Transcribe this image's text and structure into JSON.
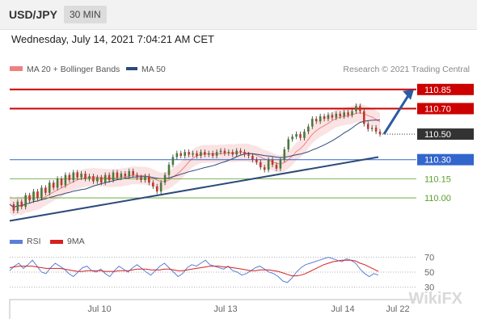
{
  "header": {
    "symbol": "USD/JPY",
    "timeframe": "30 MIN"
  },
  "datetime": "Wednesday, July 14, 2021 7:04:21 AM CET",
  "watermark": "Research © 2021 Trading Central",
  "brand_mark": "WikiFX",
  "colors": {
    "resistance": "#cc0000",
    "support": "#3366cc",
    "target_ok": "#5aa02c",
    "current": "#333333",
    "ma20": "#f08080",
    "ma50": "#2c4a7a",
    "rsi": "#5b7fd6",
    "rsi_ma": "#d62020"
  },
  "chart_data": [
    {
      "type": "line",
      "title": "USD/JPY 30 MIN",
      "legend": [
        {
          "name": "MA 20 + Bollinger Bands",
          "color": "#f08080"
        },
        {
          "name": "MA 50",
          "color": "#2c4a7a"
        }
      ],
      "x_ticks": [
        "Jul 10",
        "Jul 13",
        "Jul 14",
        "Jul 22"
      ],
      "ylim": [
        109.76,
        110.95
      ],
      "levels": [
        {
          "label": "110.85",
          "value": 110.85,
          "kind": "resistance"
        },
        {
          "label": "110.70",
          "value": 110.7,
          "kind": "resistance"
        },
        {
          "label": "110.50",
          "value": 110.5,
          "kind": "current"
        },
        {
          "label": "110.30",
          "value": 110.3,
          "kind": "support"
        },
        {
          "label": "110.15",
          "value": 110.15,
          "kind": "target"
        },
        {
          "label": "110.00",
          "value": 110.0,
          "kind": "target"
        }
      ],
      "price_series": [
        109.95,
        109.9,
        109.97,
        109.93,
        110.02,
        109.98,
        110.05,
        110.0,
        110.08,
        110.04,
        110.12,
        110.08,
        110.15,
        110.1,
        110.18,
        110.14,
        110.2,
        110.16,
        110.19,
        110.15,
        110.17,
        110.13,
        110.16,
        110.12,
        110.18,
        110.14,
        110.2,
        110.16,
        110.19,
        110.17,
        110.21,
        110.18,
        110.16,
        110.14,
        110.17,
        110.12,
        110.09,
        110.05,
        110.12,
        110.18,
        110.26,
        110.32,
        110.35,
        110.33,
        110.36,
        110.34,
        110.35,
        110.33,
        110.36,
        110.34,
        110.35,
        110.33,
        110.36,
        110.37,
        110.35,
        110.36,
        110.34,
        110.37,
        110.36,
        110.34,
        110.33,
        110.3,
        110.28,
        110.24,
        110.22,
        110.3,
        110.26,
        110.23,
        110.3,
        110.38,
        110.46,
        110.48,
        110.5,
        110.47,
        110.52,
        110.56,
        110.62,
        110.6,
        110.64,
        110.62,
        110.65,
        110.63,
        110.66,
        110.64,
        110.67,
        110.65,
        110.68,
        110.72,
        110.68,
        110.58,
        110.54,
        110.55,
        110.52,
        110.5
      ],
      "trendline": {
        "start": 109.82,
        "end": 110.32
      },
      "arrow_target": 110.85
    },
    {
      "type": "line",
      "title": "RSI",
      "legend": [
        {
          "name": "RSI",
          "color": "#5b7fd6"
        },
        {
          "name": "9MA",
          "color": "#d62020"
        }
      ],
      "y_ticks": [
        70,
        50,
        30
      ],
      "ylim": [
        25,
        75
      ],
      "rsi": [
        52,
        58,
        62,
        55,
        60,
        66,
        58,
        50,
        48,
        56,
        62,
        58,
        54,
        48,
        44,
        50,
        56,
        58,
        52,
        50,
        54,
        48,
        44,
        52,
        58,
        54,
        50,
        56,
        60,
        55,
        50,
        46,
        52,
        58,
        62,
        56,
        50,
        44,
        48,
        56,
        60,
        58,
        62,
        66,
        60,
        58,
        56,
        54,
        58,
        52,
        50,
        46,
        48,
        52,
        56,
        58,
        54,
        50,
        48,
        44,
        38,
        36,
        42,
        50,
        56,
        60,
        62,
        64,
        66,
        68,
        70,
        68,
        66,
        64,
        68,
        66,
        62,
        54,
        48,
        44,
        48,
        46
      ],
      "rsi_ma": [
        56,
        57,
        58,
        58,
        58,
        58,
        57,
        56,
        55,
        55,
        55,
        55,
        54,
        53,
        52,
        51,
        51,
        52,
        52,
        52,
        52,
        51,
        51,
        51,
        52,
        52,
        52,
        53,
        54,
        54,
        54,
        53,
        53,
        53,
        54,
        54,
        53,
        52,
        52,
        53,
        54,
        55,
        56,
        57,
        58,
        58,
        58,
        57,
        57,
        56,
        55,
        54,
        53,
        52,
        52,
        53,
        53,
        53,
        52,
        51,
        49,
        47,
        45,
        45,
        46,
        48,
        51,
        54,
        57,
        60,
        62,
        64,
        65,
        66,
        66,
        66,
        65,
        62,
        60,
        57,
        54,
        51
      ]
    }
  ]
}
